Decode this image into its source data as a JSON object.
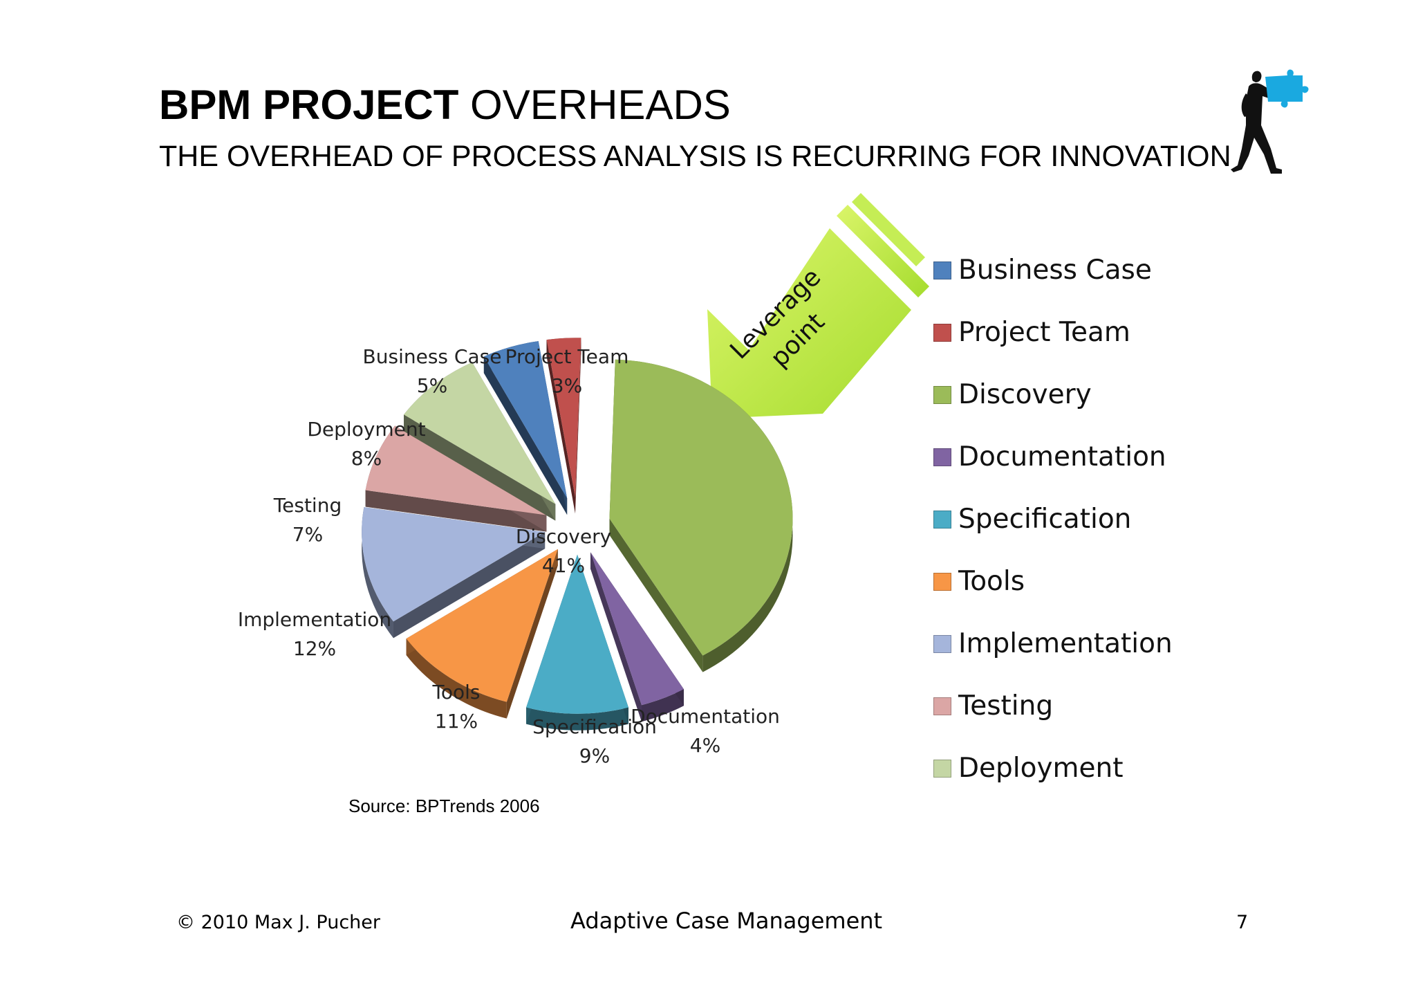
{
  "slide": {
    "title_bold": "BPM PROJECT",
    "title_rest": " OVERHEADS",
    "subtitle": "THE OVERHEAD OF PROCESS ANALYSIS IS RECURRING FOR INNOVATION",
    "source": "Source: BPTrends 2006",
    "arrow_text_line1": "Leverage",
    "arrow_text_line2": "point",
    "footer": {
      "copyright": "© 2010 Max J. Pucher",
      "center": "Adaptive Case Management",
      "page_number": "7"
    },
    "logo_icon": "man-carrying-puzzle-piece-icon"
  },
  "colors": {
    "arrow": "#b9e84a",
    "logo_puzzle": "#1aa9e0"
  },
  "chart_data": {
    "type": "pie",
    "title": "",
    "legend_position": "right",
    "slices": [
      {
        "name": "Business Case",
        "value": 5,
        "label": "5%",
        "color": "#4f81bd"
      },
      {
        "name": "Project Team",
        "value": 3,
        "label": "3%",
        "color": "#c0504d"
      },
      {
        "name": "Discovery",
        "value": 41,
        "label": "41%",
        "color": "#9bbb59"
      },
      {
        "name": "Documentation",
        "value": 4,
        "label": "4%",
        "color": "#8064a2"
      },
      {
        "name": "Specification",
        "value": 9,
        "label": "9%",
        "color": "#4bacc6"
      },
      {
        "name": "Tools",
        "value": 11,
        "label": "11%",
        "color": "#f79646"
      },
      {
        "name": "Implementation",
        "value": 12,
        "label": "12%",
        "color": "#a5b5db"
      },
      {
        "name": "Testing",
        "value": 7,
        "label": "7%",
        "color": "#dba6a5"
      },
      {
        "name": "Deployment",
        "value": 8,
        "label": "8%",
        "color": "#c4d6a4"
      }
    ]
  }
}
